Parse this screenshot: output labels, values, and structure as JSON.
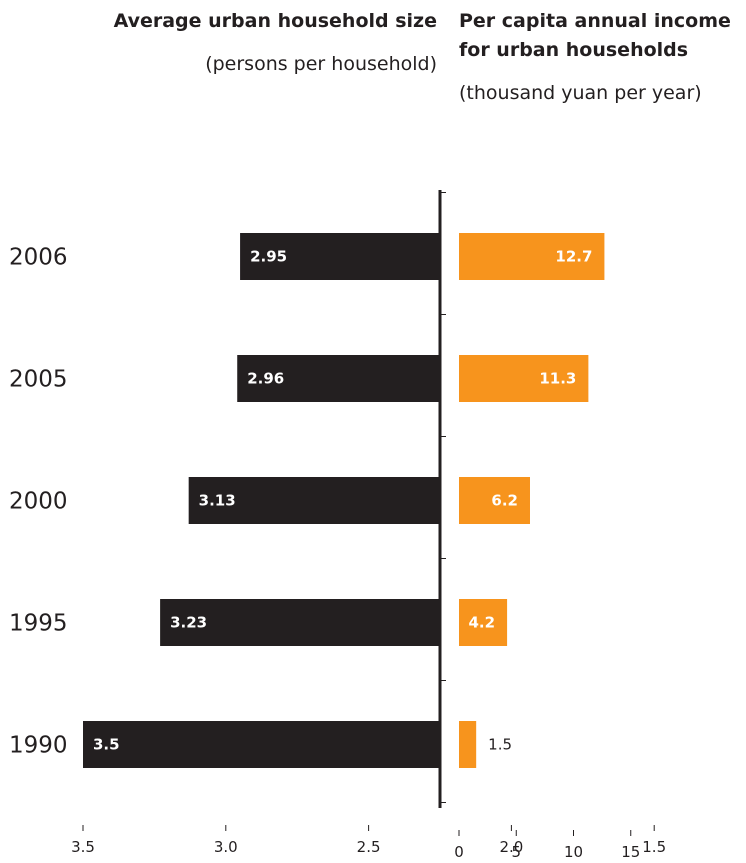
{
  "chart_data": {
    "type": "bar",
    "orientation": "horizontal-diverging",
    "categories": [
      "2006",
      "2005",
      "2000",
      "1995",
      "1990"
    ],
    "left_panel": {
      "title": "Average urban household size",
      "subtitle": "(persons per household)",
      "series": [
        {
          "values": [
            2.95,
            2.96,
            3.13,
            3.23,
            3.5
          ]
        }
      ],
      "value_labels": [
        "2.95",
        "2.96",
        "3.13",
        "3.23",
        "3.5"
      ],
      "xlim": [
        1.0,
        3.5
      ],
      "ticks": [
        "3.5",
        "3.0",
        "2.5",
        "2.0",
        "1.5"
      ],
      "color": "#231f20"
    },
    "right_panel": {
      "title_lines": [
        "Per capita annual income",
        "for urban households"
      ],
      "subtitle": "(thousand yuan per year)",
      "series": [
        {
          "values": [
            12.7,
            11.3,
            6.2,
            4.2,
            1.5
          ]
        }
      ],
      "value_labels": [
        "12.7",
        "11.3",
        "6.2",
        "4.2",
        "1.5"
      ],
      "xlim": [
        0,
        15
      ],
      "ticks": [
        "0",
        "5",
        "10",
        "15"
      ],
      "color": "#f7941d"
    },
    "legend": "none",
    "grid": false
  }
}
